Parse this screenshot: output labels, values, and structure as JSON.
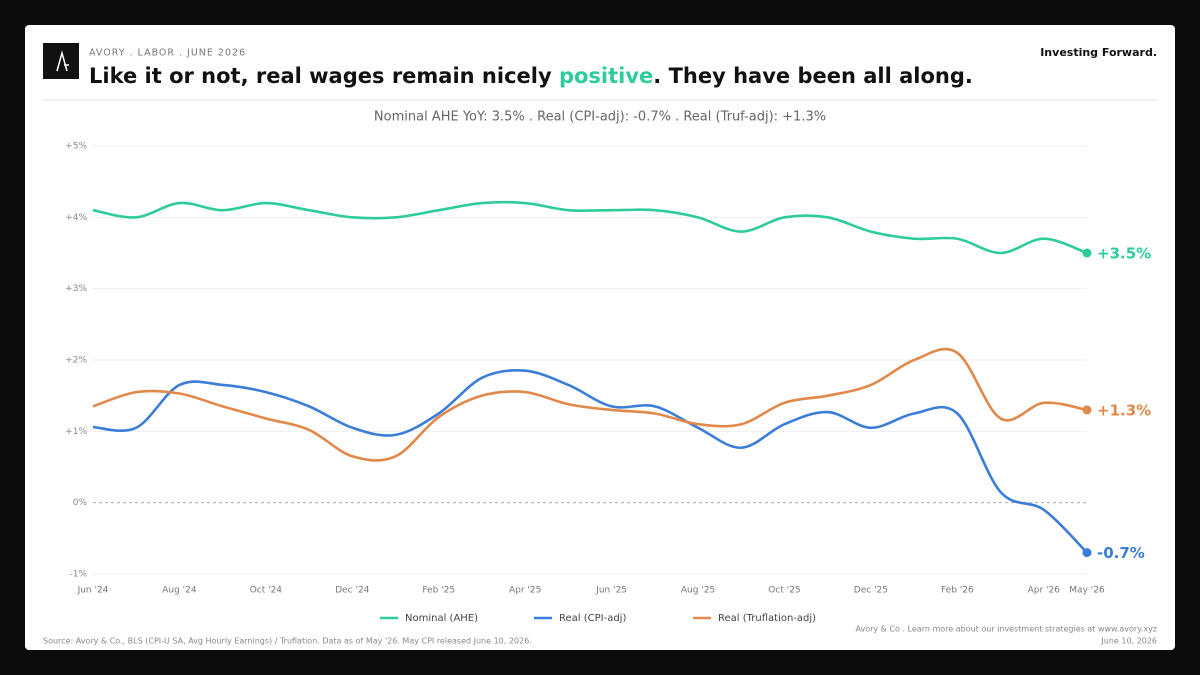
{
  "header": {
    "brand": "AVORY . LABOR . JUNE 2026",
    "title_before": "Like it or not, real wages remain nicely ",
    "title_highlight": "positive",
    "title_after": ". They have been all along.",
    "tagline": "Investing Forward."
  },
  "chart_data": {
    "type": "line",
    "subtitle": "Nominal AHE YoY: 3.5% . Real (CPI-adj): -0.7% . Real (Truf-adj): +1.3%",
    "categories": [
      "Jun '24",
      null,
      "Aug '24",
      null,
      "Oct '24",
      null,
      "Dec '24",
      null,
      "Feb '25",
      null,
      "Apr '25",
      null,
      "Jun '25",
      null,
      "Aug '25",
      null,
      "Oct '25",
      null,
      "Dec '25",
      null,
      "Feb '26",
      null,
      "Apr '26",
      "May '26"
    ],
    "series": [
      {
        "name": "Nominal (AHE)",
        "color": "#2ecc9a",
        "values": [
          4.1,
          4.0,
          4.2,
          4.1,
          4.2,
          4.1,
          4.0,
          4.0,
          4.1,
          4.2,
          4.2,
          4.1,
          4.1,
          4.1,
          4.0,
          3.8,
          4.0,
          4.0,
          3.8,
          3.7,
          3.7,
          3.5,
          3.7,
          3.5
        ],
        "value_labels": [
          null,
          null,
          null,
          null,
          null,
          null,
          null,
          null,
          null,
          null,
          null,
          null,
          null,
          null,
          null,
          null,
          null,
          null,
          null,
          null,
          null,
          null,
          null,
          "+3.5%"
        ]
      },
      {
        "name": "Real (CPI-adj)",
        "color": "#3b7dd8",
        "values": [
          1.06,
          1.05,
          1.65,
          1.65,
          1.55,
          1.35,
          1.05,
          0.95,
          1.25,
          1.75,
          1.85,
          1.65,
          1.35,
          1.35,
          1.05,
          0.77,
          1.1,
          1.27,
          1.05,
          1.25,
          1.25,
          0.15,
          -0.1,
          -0.7
        ],
        "value_labels": [
          null,
          null,
          null,
          null,
          null,
          null,
          null,
          null,
          null,
          null,
          null,
          null,
          null,
          null,
          null,
          null,
          null,
          null,
          null,
          null,
          null,
          null,
          null,
          "-0.7%"
        ]
      },
      {
        "name": "Real (Truflation-adj)",
        "color": "#e0894a",
        "values": [
          1.35,
          1.55,
          1.53,
          1.35,
          1.18,
          1.02,
          0.65,
          0.65,
          1.2,
          1.5,
          1.55,
          1.38,
          1.3,
          1.25,
          1.1,
          1.1,
          1.4,
          1.5,
          1.65,
          2.0,
          2.1,
          1.18,
          1.4,
          1.3
        ],
        "value_labels": [
          null,
          null,
          null,
          null,
          null,
          null,
          null,
          null,
          null,
          null,
          null,
          null,
          null,
          null,
          null,
          null,
          null,
          null,
          null,
          null,
          null,
          null,
          null,
          "+1.3%"
        ]
      }
    ],
    "ylim": [
      -1,
      5
    ],
    "yticks": [
      {
        "value": -1,
        "label": "-1%"
      },
      {
        "value": 0,
        "label": "0%"
      },
      {
        "value": 1,
        "label": "+1%"
      },
      {
        "value": 2,
        "label": "+2%"
      },
      {
        "value": 3,
        "label": "+3%"
      },
      {
        "value": 4,
        "label": "+4%"
      },
      {
        "value": 5,
        "label": "+5%"
      }
    ],
    "grid": true,
    "legend": "bottom"
  },
  "footer": {
    "source": "Source: Avory & Co., BLS (CPI-U SA, Avg Hourly Earnings) / Truflation. Data as of May '26. May CPI released June 10, 2026.",
    "promo": "Avory & Co . Learn more about our investment strategies at www.avory.xyz",
    "date": "June 10, 2026"
  }
}
